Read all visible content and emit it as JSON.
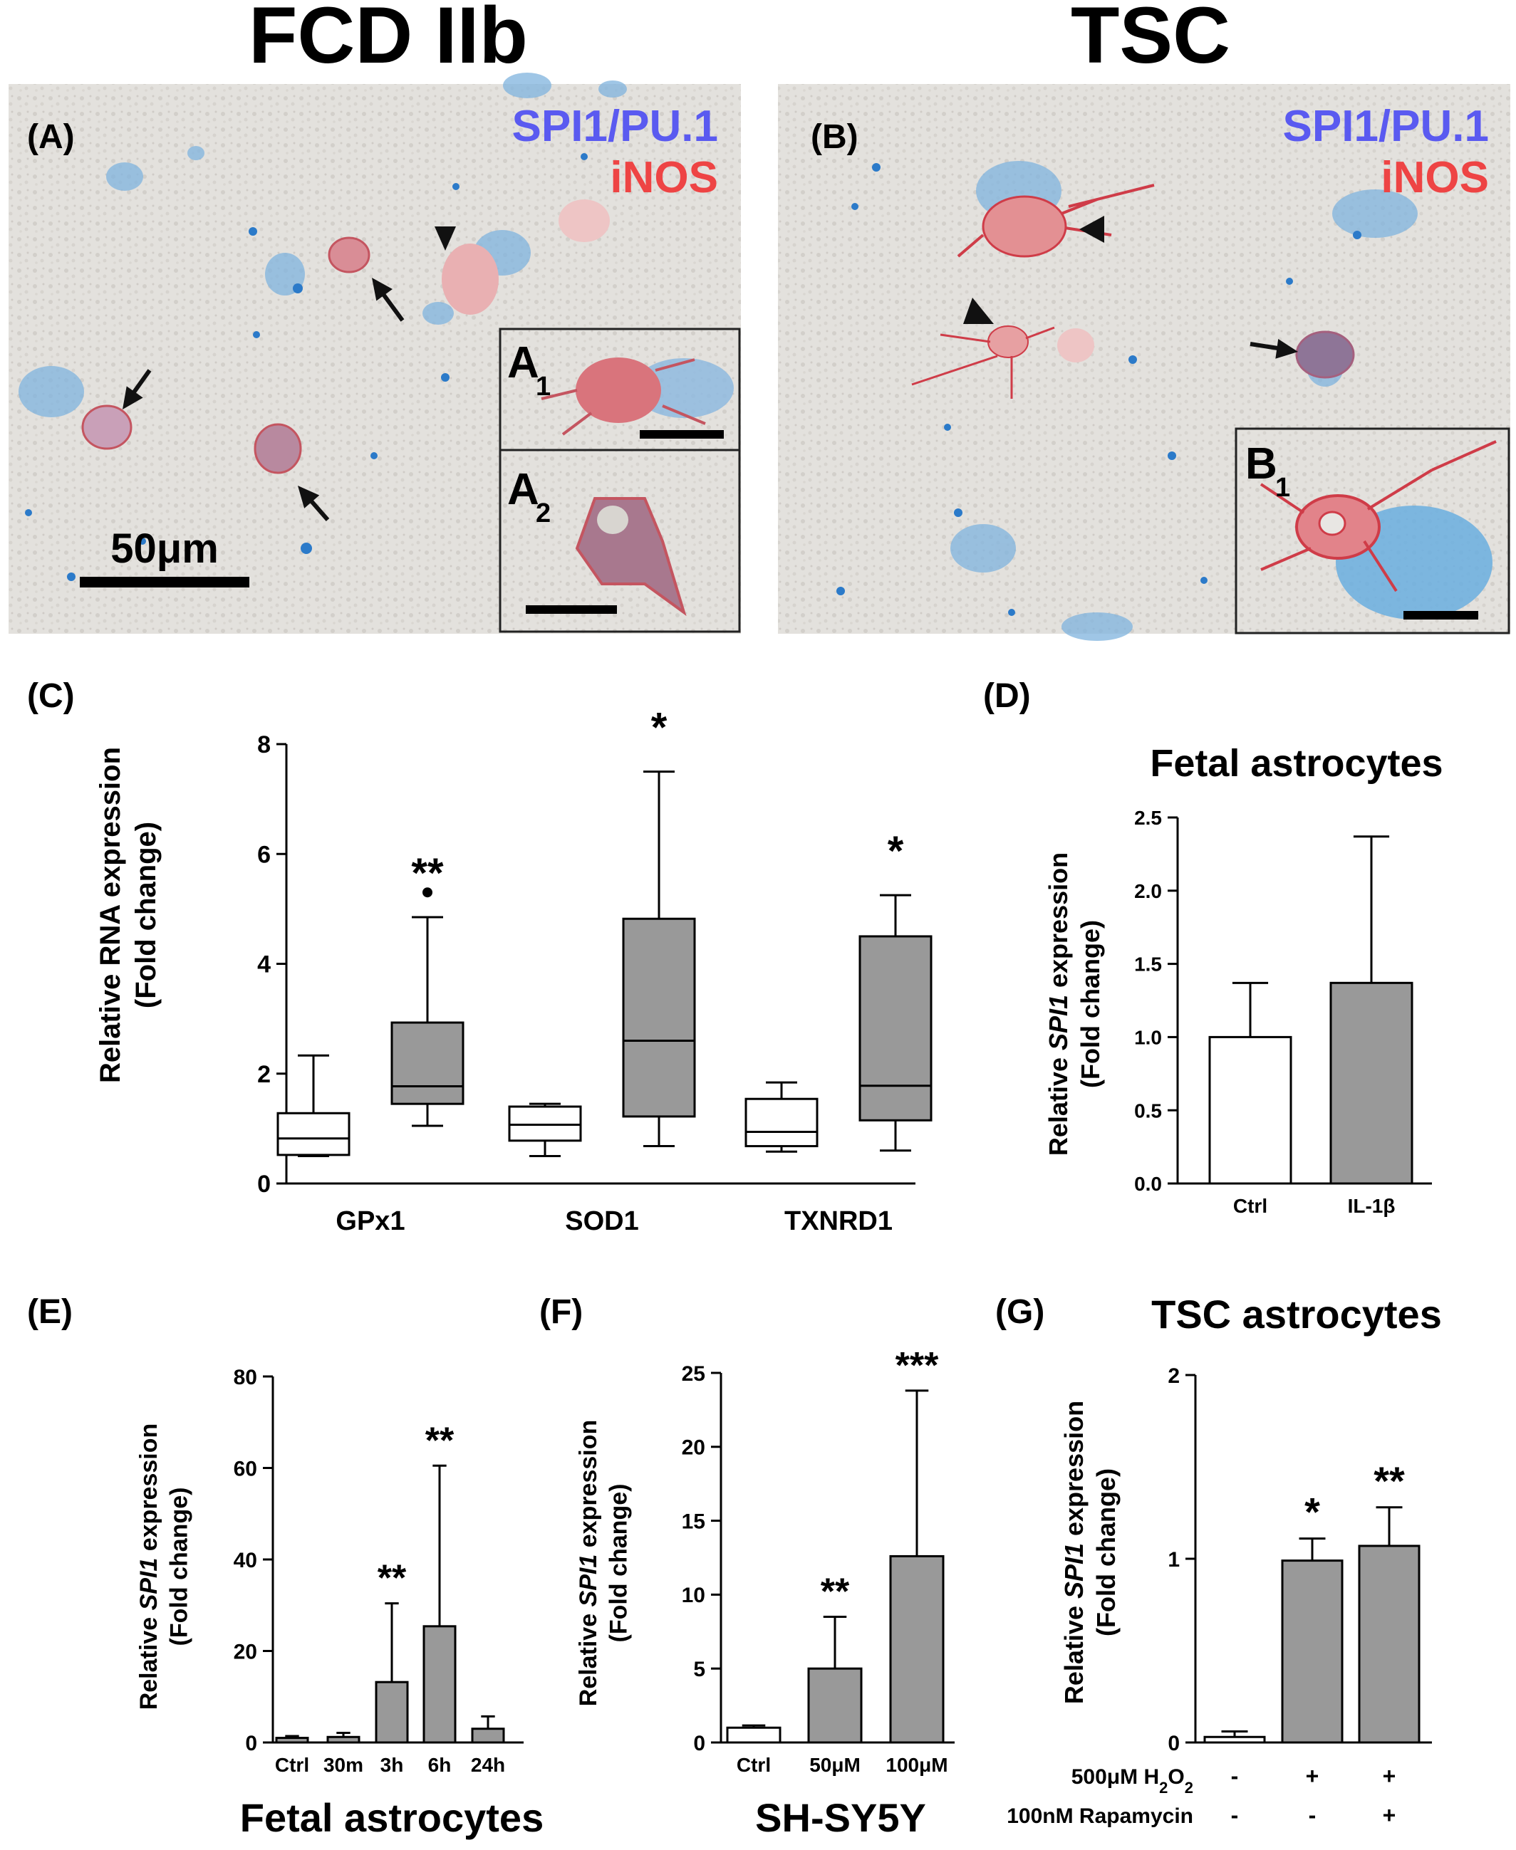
{
  "micrographs": {
    "left_heading": "FCD IIb",
    "right_heading": "TSC",
    "panel_a": {
      "label": "(A)",
      "stain_1": "SPI1/PU.1",
      "stain_2": "iNOS",
      "scale_bar": "50μm",
      "inset_1": "A",
      "inset_1_sub": "1",
      "inset_2": "A",
      "inset_2_sub": "2"
    },
    "panel_b": {
      "label": "(B)",
      "stain_1": "SPI1/PU.1",
      "stain_2": "iNOS",
      "inset_1": "B",
      "inset_1_sub": "1"
    },
    "colors": {
      "spi1": "#5a5af0",
      "inos": "#ee4444",
      "tissue": "#e3e1dd"
    }
  },
  "chart_data": [
    {
      "panel": "(C)",
      "type": "box",
      "title": "",
      "ylabel_line1": "Relative RNA expression",
      "ylabel_line2": "(Fold change)",
      "ylim": [
        0,
        8
      ],
      "yticks": [
        "0",
        "2",
        "4",
        "6",
        "8"
      ],
      "categories": [
        "GPx1",
        "SOD1",
        "TXNRD1"
      ],
      "series_colors": [
        "#ffffff",
        "#999999"
      ],
      "groups": [
        {
          "category": "GPx1",
          "boxes": [
            {
              "min": 0.5,
              "q1": 0.52,
              "median": 0.82,
              "q3": 1.28,
              "max": 2.33
            },
            {
              "min": 1.05,
              "q1": 1.45,
              "median": 1.77,
              "q3": 2.93,
              "max": 4.85,
              "outliers": [
                5.3
              ]
            }
          ],
          "sig": "**"
        },
        {
          "category": "SOD1",
          "boxes": [
            {
              "min": 0.5,
              "q1": 0.78,
              "median": 1.07,
              "q3": 1.4,
              "max": 1.45
            },
            {
              "min": 0.68,
              "q1": 1.22,
              "median": 2.6,
              "q3": 4.82,
              "max": 7.5
            }
          ],
          "sig": "*"
        },
        {
          "category": "TXNRD1",
          "boxes": [
            {
              "min": 0.58,
              "q1": 0.68,
              "median": 0.94,
              "q3": 1.54,
              "max": 1.84
            },
            {
              "min": 0.6,
              "q1": 1.15,
              "median": 1.78,
              "q3": 4.5,
              "max": 5.25
            }
          ],
          "sig": "*"
        }
      ]
    },
    {
      "panel": "(D)",
      "type": "bar",
      "title": "Fetal astrocytes",
      "ylabel_italic": "SPI1",
      "ylabel_pre": "Relative ",
      "ylabel_post": " expression",
      "ylabel_line2": "(Fold change)",
      "ylim": [
        0,
        2.5
      ],
      "yticks": [
        "0.0",
        "0.5",
        "1.0",
        "1.5",
        "2.0",
        "2.5"
      ],
      "categories": [
        "Ctrl",
        "IL-1β"
      ],
      "values": [
        1.0,
        1.37
      ],
      "errors": [
        0.37,
        1.0
      ],
      "colors": [
        "#ffffff",
        "#999999"
      ],
      "sig": [
        "",
        ""
      ]
    },
    {
      "panel": "(E)",
      "type": "bar",
      "title": "Fetal astrocytes",
      "ylabel_italic": "SPI1",
      "ylabel_pre": "Relative ",
      "ylabel_post": " expression",
      "ylabel_line2": "(Fold change)",
      "ylim": [
        0,
        80
      ],
      "yticks": [
        "0",
        "20",
        "40",
        "60",
        "80"
      ],
      "categories": [
        "Ctrl",
        "30m",
        "3h",
        "6h",
        "24h"
      ],
      "values": [
        1.0,
        1.2,
        13.2,
        25.4,
        3.0
      ],
      "errors": [
        0.4,
        0.9,
        17.2,
        35.1,
        2.7
      ],
      "colors": [
        "#999999",
        "#999999",
        "#999999",
        "#999999",
        "#999999"
      ],
      "sig": [
        "",
        "",
        "**",
        "**",
        ""
      ]
    },
    {
      "panel": "(F)",
      "type": "bar",
      "title": "SH-SY5Y",
      "ylabel_italic": "SPI1",
      "ylabel_pre": "Relative ",
      "ylabel_post": " expression",
      "ylabel_line2": "(Fold change)",
      "ylim": [
        0,
        25
      ],
      "yticks": [
        "0",
        "5",
        "10",
        "15",
        "20",
        "25"
      ],
      "categories": [
        "Ctrl",
        "50μM",
        "100μM"
      ],
      "values": [
        1.0,
        5.0,
        12.6
      ],
      "errors": [
        0.15,
        3.5,
        11.2
      ],
      "colors": [
        "#ffffff",
        "#999999",
        "#999999"
      ],
      "sig": [
        "",
        "**",
        "***"
      ]
    },
    {
      "panel": "(G)",
      "type": "bar",
      "title": "TSC astrocytes",
      "ylabel_italic": "SPI1",
      "ylabel_pre": "Relative ",
      "ylabel_post": " expression",
      "ylabel_line2": "(Fold change)",
      "ylim": [
        0,
        2
      ],
      "yticks": [
        "0",
        "1",
        "2"
      ],
      "categories": [
        "",
        "",
        ""
      ],
      "values": [
        0.03,
        0.99,
        1.07
      ],
      "errors": [
        0.03,
        0.12,
        0.21
      ],
      "colors": [
        "#ffffff",
        "#999999",
        "#999999"
      ],
      "sig": [
        "",
        "*",
        "**"
      ],
      "treatment_rows": [
        {
          "label_pre": "500μM H",
          "label_sub": "2",
          "label_mid": "O",
          "label_sub2": "2",
          "marks": [
            "-",
            "+",
            "+"
          ]
        },
        {
          "label_pre": "100nM Rapamycin",
          "label_sub": "",
          "label_mid": "",
          "label_sub2": "",
          "marks": [
            "-",
            "-",
            "+"
          ]
        }
      ]
    }
  ]
}
